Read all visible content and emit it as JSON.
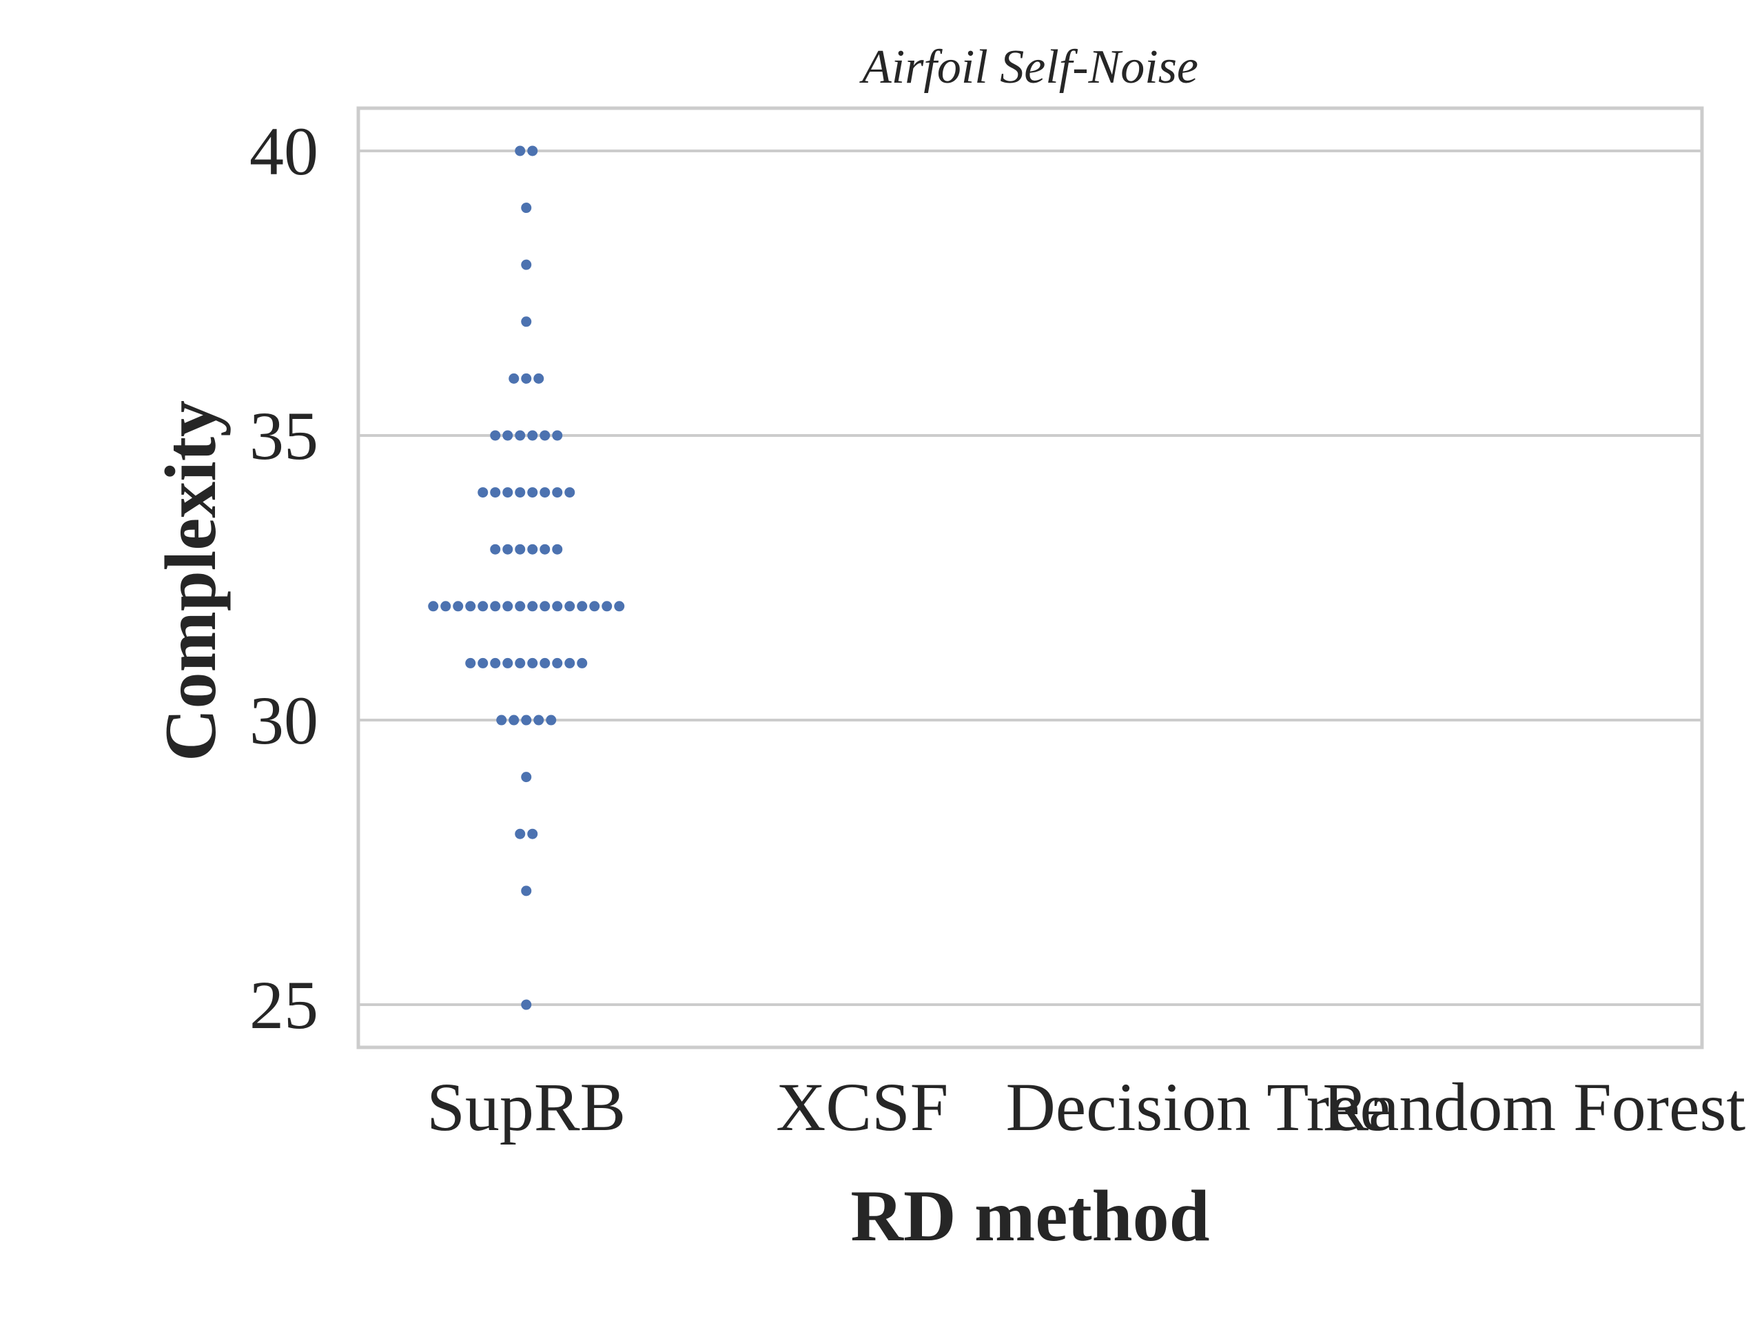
{
  "chart_data": {
    "type": "scatter",
    "subtype": "swarm",
    "title": "Airfoil Self-Noise",
    "xlabel": "RD method",
    "ylabel": "Complexity",
    "categories": [
      "SupRB",
      "XCSF",
      "Decision Tree",
      "Random Forest"
    ],
    "yticks": [
      25,
      30,
      35,
      40
    ],
    "ylim": [
      24.25,
      40.75
    ],
    "grid": "horizontal",
    "point_color": "#4c72b0",
    "series": [
      {
        "category": "SupRB",
        "counts": [
          {
            "value": 40,
            "count": 2
          },
          {
            "value": 39,
            "count": 1
          },
          {
            "value": 38,
            "count": 1
          },
          {
            "value": 37,
            "count": 1
          },
          {
            "value": 36,
            "count": 3
          },
          {
            "value": 35,
            "count": 6
          },
          {
            "value": 34,
            "count": 8
          },
          {
            "value": 33,
            "count": 6
          },
          {
            "value": 32,
            "count": 16
          },
          {
            "value": 31,
            "count": 10
          },
          {
            "value": 30,
            "count": 5
          },
          {
            "value": 29,
            "count": 1
          },
          {
            "value": 28,
            "count": 2
          },
          {
            "value": 27,
            "count": 1
          },
          {
            "value": 25,
            "count": 1
          }
        ]
      }
    ]
  }
}
